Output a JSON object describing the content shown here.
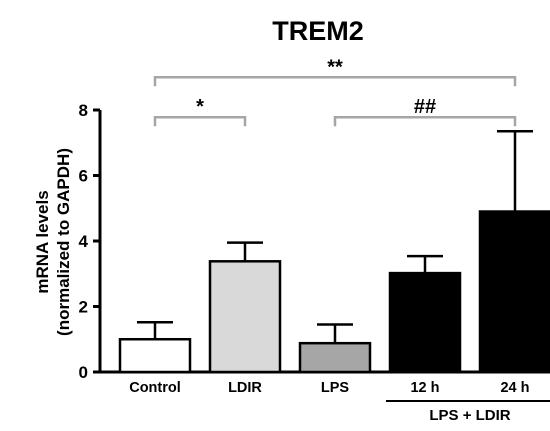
{
  "chart_data": {
    "type": "bar",
    "title": "TREM2",
    "ylabel_line1": "mRNA levels",
    "ylabel_line2": "(normalized to GAPDH)",
    "ylim": [
      0,
      8
    ],
    "yticks": [
      0,
      2,
      4,
      6,
      8
    ],
    "categories": [
      "Control",
      "LDIR",
      "LPS",
      "12 h",
      "24 h"
    ],
    "values": [
      1.0,
      3.38,
      0.88,
      3.02,
      4.9
    ],
    "errors": [
      0.52,
      0.57,
      0.57,
      0.52,
      2.45
    ],
    "colors": [
      "#ffffff",
      "#d9d9d9",
      "#a6a6a6",
      "#000000",
      "#000000"
    ],
    "group_label": {
      "text": "LPS + LDIR",
      "from": 3,
      "to": 4
    },
    "significance": [
      {
        "from": 0,
        "to": 4,
        "label": "**",
        "y": 9.0
      },
      {
        "from": 0,
        "to": 1,
        "label": "*",
        "y": 7.78
      },
      {
        "from": 2,
        "to": 4,
        "label": "##",
        "y": 7.78
      }
    ],
    "grid": false,
    "legend": "none"
  }
}
